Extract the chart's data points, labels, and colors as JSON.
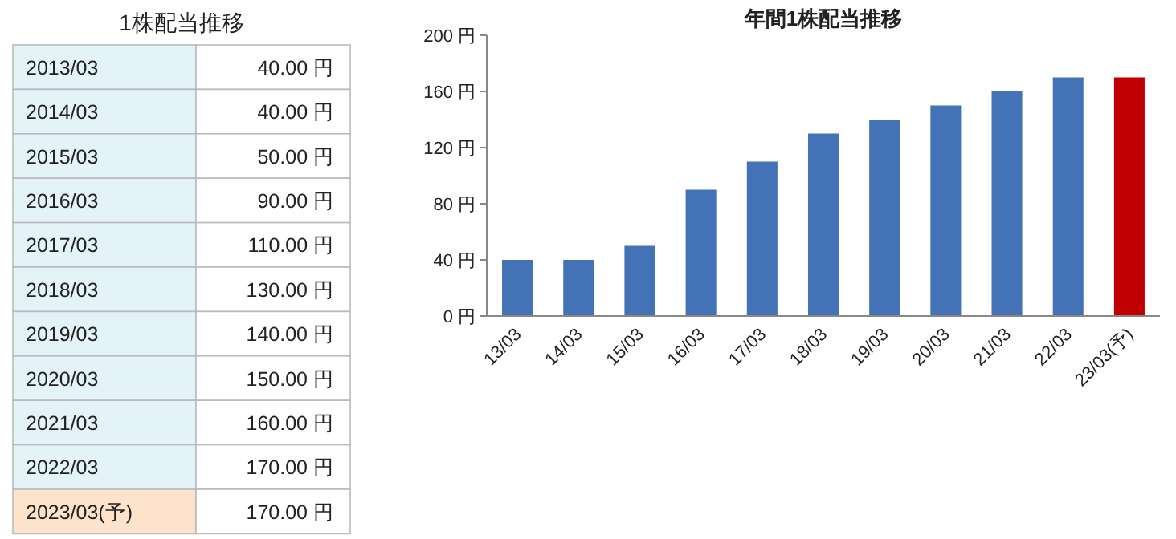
{
  "chart_data": [
    {
      "type": "other",
      "title": "1株配当推移",
      "categories": [
        "2013/03",
        "2014/03",
        "2015/03",
        "2016/03",
        "2017/03",
        "2018/03",
        "2019/03",
        "2020/03",
        "2021/03",
        "2022/03",
        "2023/03(予)"
      ],
      "values": [
        40,
        40,
        50,
        90,
        110,
        130,
        140,
        150,
        160,
        170,
        170
      ],
      "value_labels": [
        "40.00 円",
        "40.00 円",
        "50.00 円",
        "90.00 円",
        "110.00 円",
        "130.00 円",
        "140.00 円",
        "150.00 円",
        "160.00 円",
        "170.00 円",
        "170.00 円"
      ]
    },
    {
      "type": "bar",
      "title": "年間1株配当推移",
      "categories": [
        "13/03",
        "14/03",
        "15/03",
        "16/03",
        "17/03",
        "18/03",
        "19/03",
        "20/03",
        "21/03",
        "22/03",
        "23/03(予)"
      ],
      "values": [
        40,
        40,
        50,
        90,
        110,
        130,
        140,
        150,
        160,
        170,
        170
      ],
      "colors": [
        "#4472b6",
        "#4472b6",
        "#4472b6",
        "#4472b6",
        "#4472b6",
        "#4472b6",
        "#4472b6",
        "#4472b6",
        "#4472b6",
        "#4472b6",
        "#c00000"
      ],
      "ylim": [
        0,
        200
      ],
      "yticks": [
        {
          "value": 0,
          "label": "0 円"
        },
        {
          "value": 40,
          "label": "40 円"
        },
        {
          "value": 80,
          "label": "80 円"
        },
        {
          "value": 120,
          "label": "120 円"
        },
        {
          "value": 160,
          "label": "160 円"
        },
        {
          "value": 200,
          "label": "200 円"
        }
      ],
      "grid": false
    }
  ]
}
